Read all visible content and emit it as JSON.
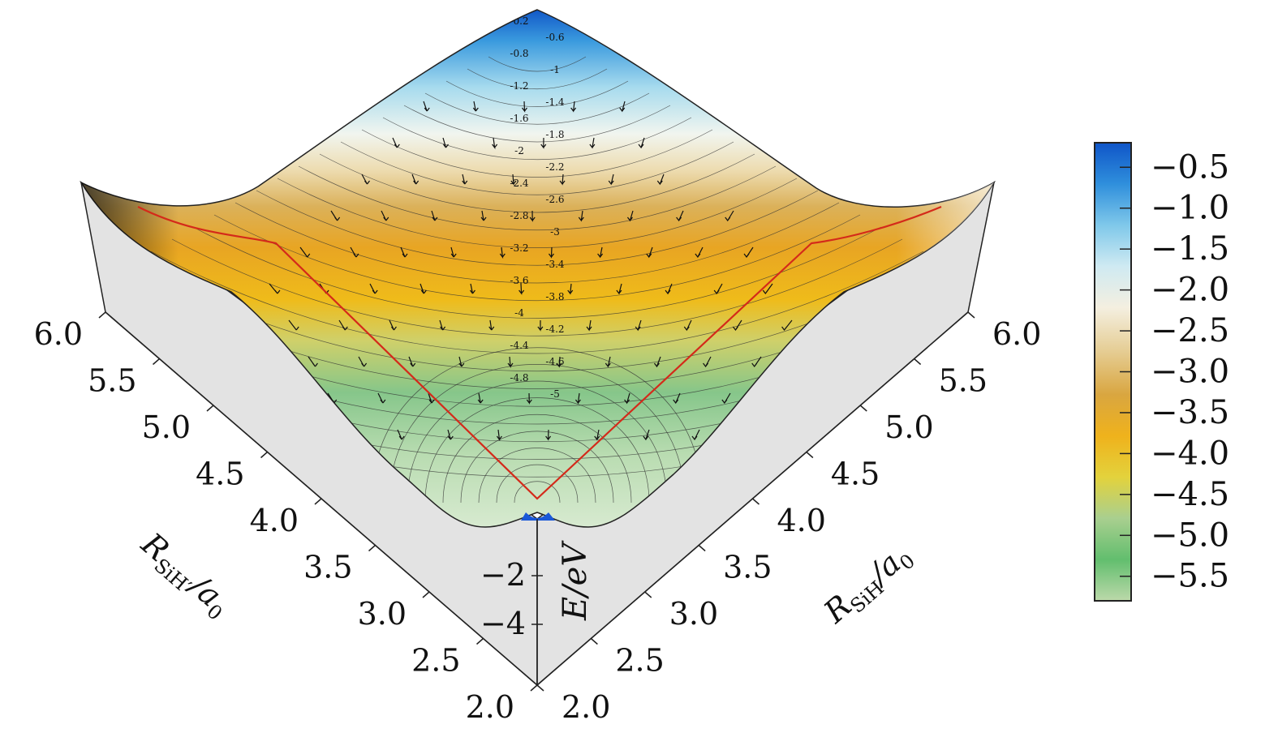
{
  "chart_data": {
    "type": "surface3d",
    "description_text": "",
    "axes": {
      "x": {
        "label_main": "R",
        "label_sub": "SiH",
        "label_tail": "/a",
        "label_tail_sub": "0",
        "ticks": [
          "2.0",
          "2.5",
          "3.0",
          "3.5",
          "4.0",
          "4.5",
          "5.0",
          "5.5",
          "6.0"
        ],
        "range": [
          2.0,
          6.0
        ]
      },
      "y": {
        "label_main": "R",
        "label_sub": "SiH′",
        "label_tail": "/a",
        "label_tail_sub": "0",
        "ticks": [
          "2.0",
          "2.5",
          "3.0",
          "3.5",
          "4.0",
          "4.5",
          "5.0",
          "5.5",
          "6.0"
        ],
        "range": [
          2.0,
          6.0
        ]
      },
      "z": {
        "label": "E/eV",
        "ticks": [
          "−2",
          "−4"
        ]
      }
    },
    "colorbar": {
      "ticks": [
        "−0.5",
        "−1.0",
        "−1.5",
        "−2.0",
        "−2.5",
        "−3.0",
        "−3.5",
        "−4.0",
        "−4.5",
        "−5.0",
        "−5.5"
      ],
      "values": [
        -0.5,
        -1.0,
        -1.5,
        -2.0,
        -2.5,
        -3.0,
        -3.5,
        -4.0,
        -4.5,
        -5.0,
        -5.5
      ],
      "range": [
        -0.2,
        -5.8
      ],
      "colors": [
        "#0f55c8",
        "#2f8fdc",
        "#7fc8ea",
        "#cfeaf2",
        "#f4efe0",
        "#e6cf98",
        "#d9a640",
        "#efb21c",
        "#e3d23c",
        "#a9cf8f",
        "#62be6e",
        "#bcd9aa"
      ]
    },
    "contour_levels": [
      "-0.2",
      "-0.6",
      "-0.8",
      "-1",
      "-1.2",
      "-1.4",
      "-1.6",
      "-1.8",
      "-2",
      "-2.2",
      "-2.4",
      "-2.6",
      "-2.8",
      "-3",
      "-3.2",
      "-3.4",
      "-3.6",
      "-3.8",
      "-4",
      "-4.2",
      "-4.4",
      "-4.6",
      "-4.8",
      "-5"
    ],
    "reaction_path_color": "#d42a1a",
    "surface": {
      "max_energy": -0.2,
      "min_energy": -5.6,
      "minimum_at": [
        2.0,
        2.0
      ]
    }
  }
}
